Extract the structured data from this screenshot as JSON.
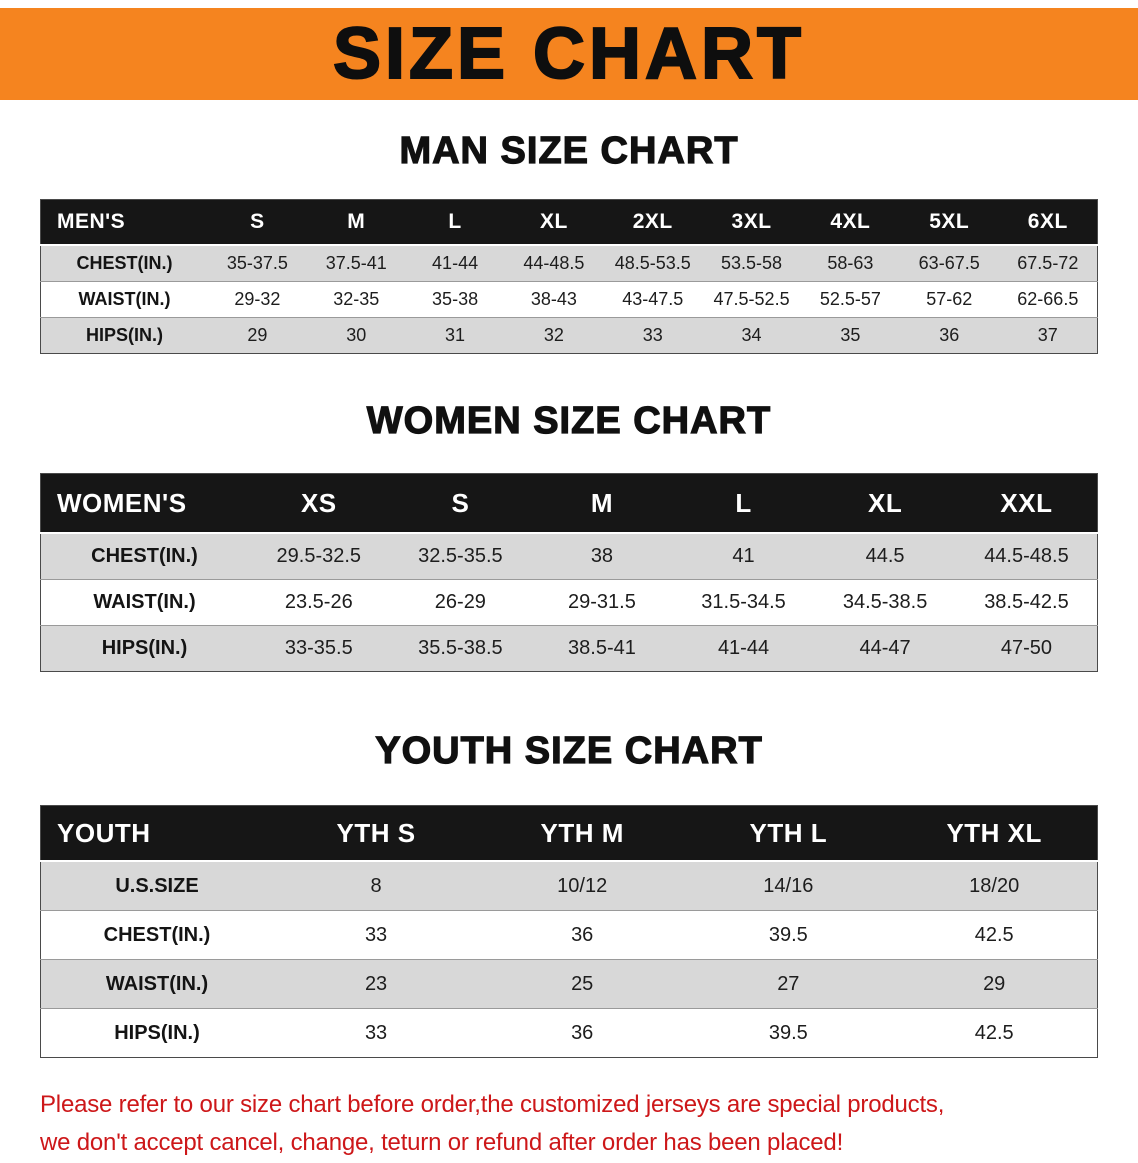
{
  "banner": {
    "title": "SIZE CHART"
  },
  "colors": {
    "banner_bg": "#f5841f",
    "table_header_bg": "#161616",
    "row_alt": "#d8d8d8",
    "notice_red": "#cd1719"
  },
  "sections": [
    {
      "heading": "MAN SIZE CHART",
      "table": {
        "label": "MEN'S",
        "columns": [
          "S",
          "M",
          "L",
          "XL",
          "2XL",
          "3XL",
          "4XL",
          "5XL",
          "6XL"
        ],
        "rows": [
          {
            "label": "CHEST(IN.)",
            "values": [
              "35-37.5",
              "37.5-41",
              "41-44",
              "44-48.5",
              "48.5-53.5",
              "53.5-58",
              "58-63",
              "63-67.5",
              "67.5-72"
            ]
          },
          {
            "label": "WAIST(IN.)",
            "values": [
              "29-32",
              "32-35",
              "35-38",
              "38-43",
              "43-47.5",
              "47.5-52.5",
              "52.5-57",
              "57-62",
              "62-66.5"
            ]
          },
          {
            "label": "HIPS(IN.)",
            "values": [
              "29",
              "30",
              "31",
              "32",
              "33",
              "34",
              "35",
              "36",
              "37"
            ]
          }
        ]
      }
    },
    {
      "heading": "WOMEN SIZE CHART",
      "table": {
        "label": "WOMEN'S",
        "columns": [
          "XS",
          "S",
          "M",
          "L",
          "XL",
          "XXL"
        ],
        "rows": [
          {
            "label": "CHEST(IN.)",
            "values": [
              "29.5-32.5",
              "32.5-35.5",
              "38",
              "41",
              "44.5",
              "44.5-48.5"
            ]
          },
          {
            "label": "WAIST(IN.)",
            "values": [
              "23.5-26",
              "26-29",
              "29-31.5",
              "31.5-34.5",
              "34.5-38.5",
              "38.5-42.5"
            ]
          },
          {
            "label": "HIPS(IN.)",
            "values": [
              "33-35.5",
              "35.5-38.5",
              "38.5-41",
              "41-44",
              "44-47",
              "47-50"
            ]
          }
        ]
      }
    },
    {
      "heading": "YOUTH SIZE CHART",
      "table": {
        "label": "YOUTH",
        "columns": [
          "YTH S",
          "YTH M",
          "YTH L",
          "YTH XL"
        ],
        "rows": [
          {
            "label": "U.S.SIZE",
            "values": [
              "8",
              "10/12",
              "14/16",
              "18/20"
            ]
          },
          {
            "label": "CHEST(IN.)",
            "values": [
              "33",
              "36",
              "39.5",
              "42.5"
            ]
          },
          {
            "label": "WAIST(IN.)",
            "values": [
              "23",
              "25",
              "27",
              "29"
            ]
          },
          {
            "label": "HIPS(IN.)",
            "values": [
              "33",
              "36",
              "39.5",
              "42.5"
            ]
          }
        ]
      }
    }
  ],
  "notice": {
    "line1": "Please refer to our size chart before order,the customized jerseys are special products,",
    "line2": "we don't accept cancel, change, teturn or refund after order has been placed!"
  }
}
